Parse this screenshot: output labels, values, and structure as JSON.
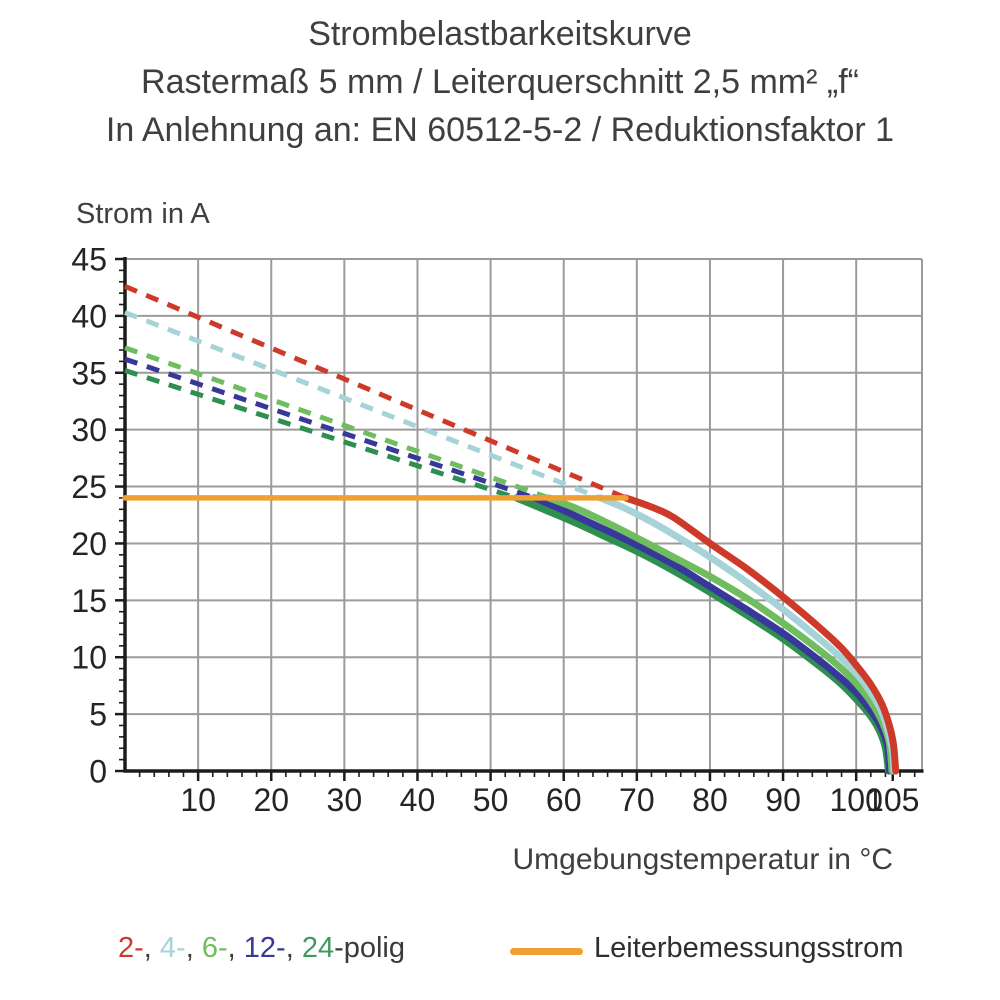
{
  "title": {
    "line1": "Strombelastbarkeitskurve",
    "line2": "Rastermaß 5 mm / Leiterquerschnitt 2,5 mm² „f“",
    "line3": "In Anlehnung an: EN 60512-5-2 / Reduktionsfaktor 1"
  },
  "axes": {
    "y_title": "Strom in A",
    "x_title": "Umgebungstemperatur in °C"
  },
  "legend": {
    "pole_parts": [
      {
        "text": "2-",
        "color": "#cd3a2a"
      },
      {
        "text": ", ",
        "color": "#3a3a3a"
      },
      {
        "text": "4-",
        "color": "#a6d3d8"
      },
      {
        "text": ", ",
        "color": "#3a3a3a"
      },
      {
        "text": "6-",
        "color": "#70bd60"
      },
      {
        "text": ", ",
        "color": "#3a3a3a"
      },
      {
        "text": "12-",
        "color": "#38389b"
      },
      {
        "text": ", ",
        "color": "#3a3a3a"
      },
      {
        "text": "24",
        "color": "#3f9a60"
      },
      {
        "text": "-polig",
        "color": "#3a3a3a"
      }
    ],
    "reference_label": "Leiterbemessungsstrom",
    "reference_color": "#efa032"
  },
  "chart_data": {
    "type": "line",
    "title": "Strombelastbarkeitskurve",
    "subtitle": "Rastermaß 5 mm / Leiterquerschnitt 2,5 mm² „f“ — In Anlehnung an: EN 60512-5-2 / Reduktionsfaktor 1",
    "xlabel": "Umgebungstemperatur in °C",
    "ylabel": "Strom in A",
    "xlim": [
      0,
      109
    ],
    "ylim": [
      0,
      45
    ],
    "x_gridlines": [
      10,
      20,
      30,
      40,
      50,
      60,
      70,
      80,
      90,
      100
    ],
    "x_major_ticks": [
      10,
      20,
      30,
      40,
      50,
      60,
      70,
      80,
      90,
      100,
      105
    ],
    "y_major_ticks": [
      0,
      5,
      10,
      15,
      20,
      25,
      30,
      35,
      40,
      45
    ],
    "x_minor_step": 2,
    "y_minor_step": 1,
    "grid": true,
    "colors": {
      "grid": "#9b9b9b",
      "axis": "#1c1c1c",
      "tick_label": "#242424"
    },
    "reference_line": {
      "name": "Leiterbemessungsstrom",
      "color": "#efa032",
      "y": 24,
      "x_range": [
        0,
        68.5
      ]
    },
    "series": [
      {
        "name": "24-polig",
        "color": "#2f8f50",
        "derating_dashed": [
          [
            0,
            35.2
          ],
          [
            53.5,
            24
          ]
        ],
        "solid": [
          [
            53.5,
            24
          ],
          [
            58,
            22.8
          ],
          [
            62,
            21.7
          ],
          [
            66,
            20.5
          ],
          [
            70,
            19.3
          ],
          [
            75,
            17.6
          ],
          [
            80,
            15.7
          ],
          [
            85,
            13.7
          ],
          [
            90,
            11.6
          ],
          [
            95,
            9.2
          ],
          [
            98,
            7.6
          ],
          [
            100,
            6.3
          ],
          [
            102,
            4.8
          ],
          [
            103.2,
            3.5
          ],
          [
            104.0,
            2.0
          ],
          [
            104.4,
            0
          ]
        ]
      },
      {
        "name": "12-polig",
        "color": "#38389b",
        "derating_dashed": [
          [
            0,
            36.2
          ],
          [
            56,
            24
          ]
        ],
        "solid": [
          [
            56,
            24
          ],
          [
            60,
            22.9
          ],
          [
            64,
            21.7
          ],
          [
            68,
            20.5
          ],
          [
            72,
            19.2
          ],
          [
            76,
            17.8
          ],
          [
            80,
            16.2
          ],
          [
            85,
            14.2
          ],
          [
            90,
            12.1
          ],
          [
            95,
            9.7
          ],
          [
            98,
            8.1
          ],
          [
            100,
            6.9
          ],
          [
            102,
            5.3
          ],
          [
            103.3,
            4.0
          ],
          [
            104.3,
            2.2
          ],
          [
            104.6,
            0
          ]
        ]
      },
      {
        "name": "6-polig",
        "color": "#70bd60",
        "derating_dashed": [
          [
            0,
            37.2
          ],
          [
            58,
            24
          ]
        ],
        "solid": [
          [
            58,
            24
          ],
          [
            62,
            23.0
          ],
          [
            66,
            21.8
          ],
          [
            70,
            20.5
          ],
          [
            75,
            18.8
          ],
          [
            80,
            17.1
          ],
          [
            85,
            15.2
          ],
          [
            90,
            13.0
          ],
          [
            95,
            10.6
          ],
          [
            98,
            9.0
          ],
          [
            100,
            7.7
          ],
          [
            102,
            6.1
          ],
          [
            103.5,
            4.4
          ],
          [
            104.5,
            2.6
          ],
          [
            104.9,
            0
          ]
        ]
      },
      {
        "name": "4-polig",
        "color": "#a6d3d8",
        "derating_dashed": [
          [
            0,
            40.3
          ],
          [
            65,
            24
          ]
        ],
        "solid": [
          [
            65,
            24
          ],
          [
            68,
            23.2
          ],
          [
            72,
            21.9
          ],
          [
            76,
            20.4
          ],
          [
            80,
            18.8
          ],
          [
            85,
            16.6
          ],
          [
            90,
            14.2
          ],
          [
            95,
            11.6
          ],
          [
            98,
            9.9
          ],
          [
            100,
            8.6
          ],
          [
            102,
            6.9
          ],
          [
            103.5,
            5.2
          ],
          [
            104.4,
            3.4
          ],
          [
            105.0,
            1.6
          ],
          [
            105.2,
            0
          ]
        ]
      },
      {
        "name": "2-polig",
        "color": "#cd3a2a",
        "derating_dashed": [
          [
            0,
            42.6
          ],
          [
            68.5,
            24
          ]
        ],
        "solid": [
          [
            68.5,
            24
          ],
          [
            72,
            23.2
          ],
          [
            75,
            22.3
          ],
          [
            80,
            20.0
          ],
          [
            85,
            17.8
          ],
          [
            90,
            15.3
          ],
          [
            95,
            12.6
          ],
          [
            98,
            10.8
          ],
          [
            100,
            9.3
          ],
          [
            102,
            7.6
          ],
          [
            103.5,
            5.9
          ],
          [
            104.5,
            4.1
          ],
          [
            105.1,
            2.3
          ],
          [
            105.4,
            0
          ]
        ]
      }
    ]
  }
}
